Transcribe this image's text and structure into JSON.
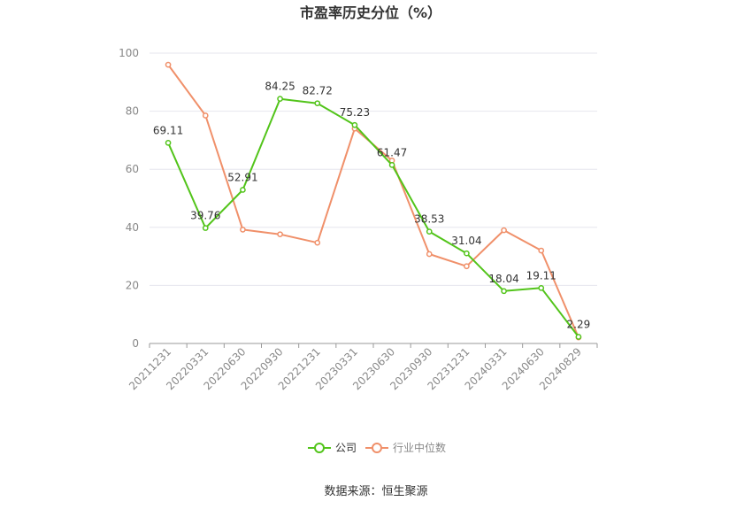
{
  "chart_data": {
    "type": "line",
    "title": "市盈率历史分位（%）",
    "xlabel": "",
    "ylabel": "",
    "categories": [
      "20211231",
      "20220331",
      "20220630",
      "20220930",
      "20221231",
      "20230331",
      "20230630",
      "20230930",
      "20231231",
      "20240331",
      "20240630",
      "20240829"
    ],
    "ylim": [
      0,
      100
    ],
    "yticks": [
      0,
      20,
      40,
      60,
      80,
      100
    ],
    "grid": true,
    "legend_position": "bottom",
    "series": [
      {
        "name": "公司",
        "color": "#52c41a",
        "values": [
          69.11,
          39.76,
          52.91,
          84.25,
          82.72,
          75.23,
          61.47,
          38.53,
          31.04,
          18.04,
          19.11,
          2.29
        ],
        "labels": [
          "69.11",
          "39.76",
          "52.91",
          "84.25",
          "82.72",
          "75.23",
          "61.47",
          "38.53",
          "31.04",
          "18.04",
          "19.11",
          "2.29"
        ]
      },
      {
        "name": "行业中位数",
        "color": "#f0906a",
        "values": [
          96.0,
          78.5,
          39.2,
          37.6,
          34.7,
          74.0,
          63.0,
          30.8,
          26.6,
          39.0,
          32.0,
          2.1
        ]
      }
    ]
  },
  "source_text": "数据来源：恒生聚源"
}
